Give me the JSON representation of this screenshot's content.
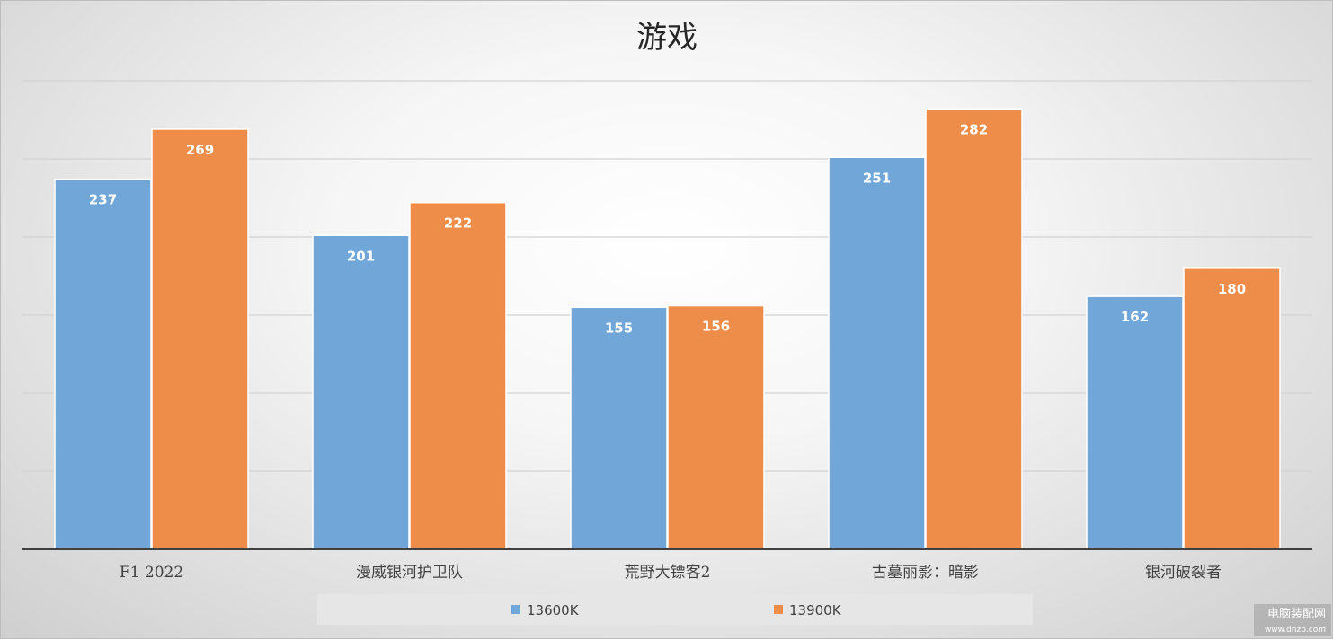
{
  "chart_data": {
    "type": "bar",
    "title": "游戏",
    "categories": [
      "F1 2022",
      "漫威银河护卫队",
      "荒野大镖客2",
      "古墓丽影：暗影",
      "银河破裂者"
    ],
    "series": [
      {
        "name": "13600K",
        "color": "#70a6d8",
        "values": [
          237,
          201,
          155,
          251,
          162
        ]
      },
      {
        "name": "13900K",
        "color": "#ee8d4a",
        "values": [
          269,
          222,
          156,
          282,
          180
        ]
      }
    ],
    "ylim": [
      0,
      300
    ],
    "y_grid_step": 50,
    "grid": true,
    "show_y_tick_labels": false,
    "data_labels": true,
    "legend_position": "bottom",
    "xlabel": "",
    "ylabel": ""
  },
  "watermark": {
    "text": "电脑装配网",
    "url": "www.dnzp.com"
  }
}
